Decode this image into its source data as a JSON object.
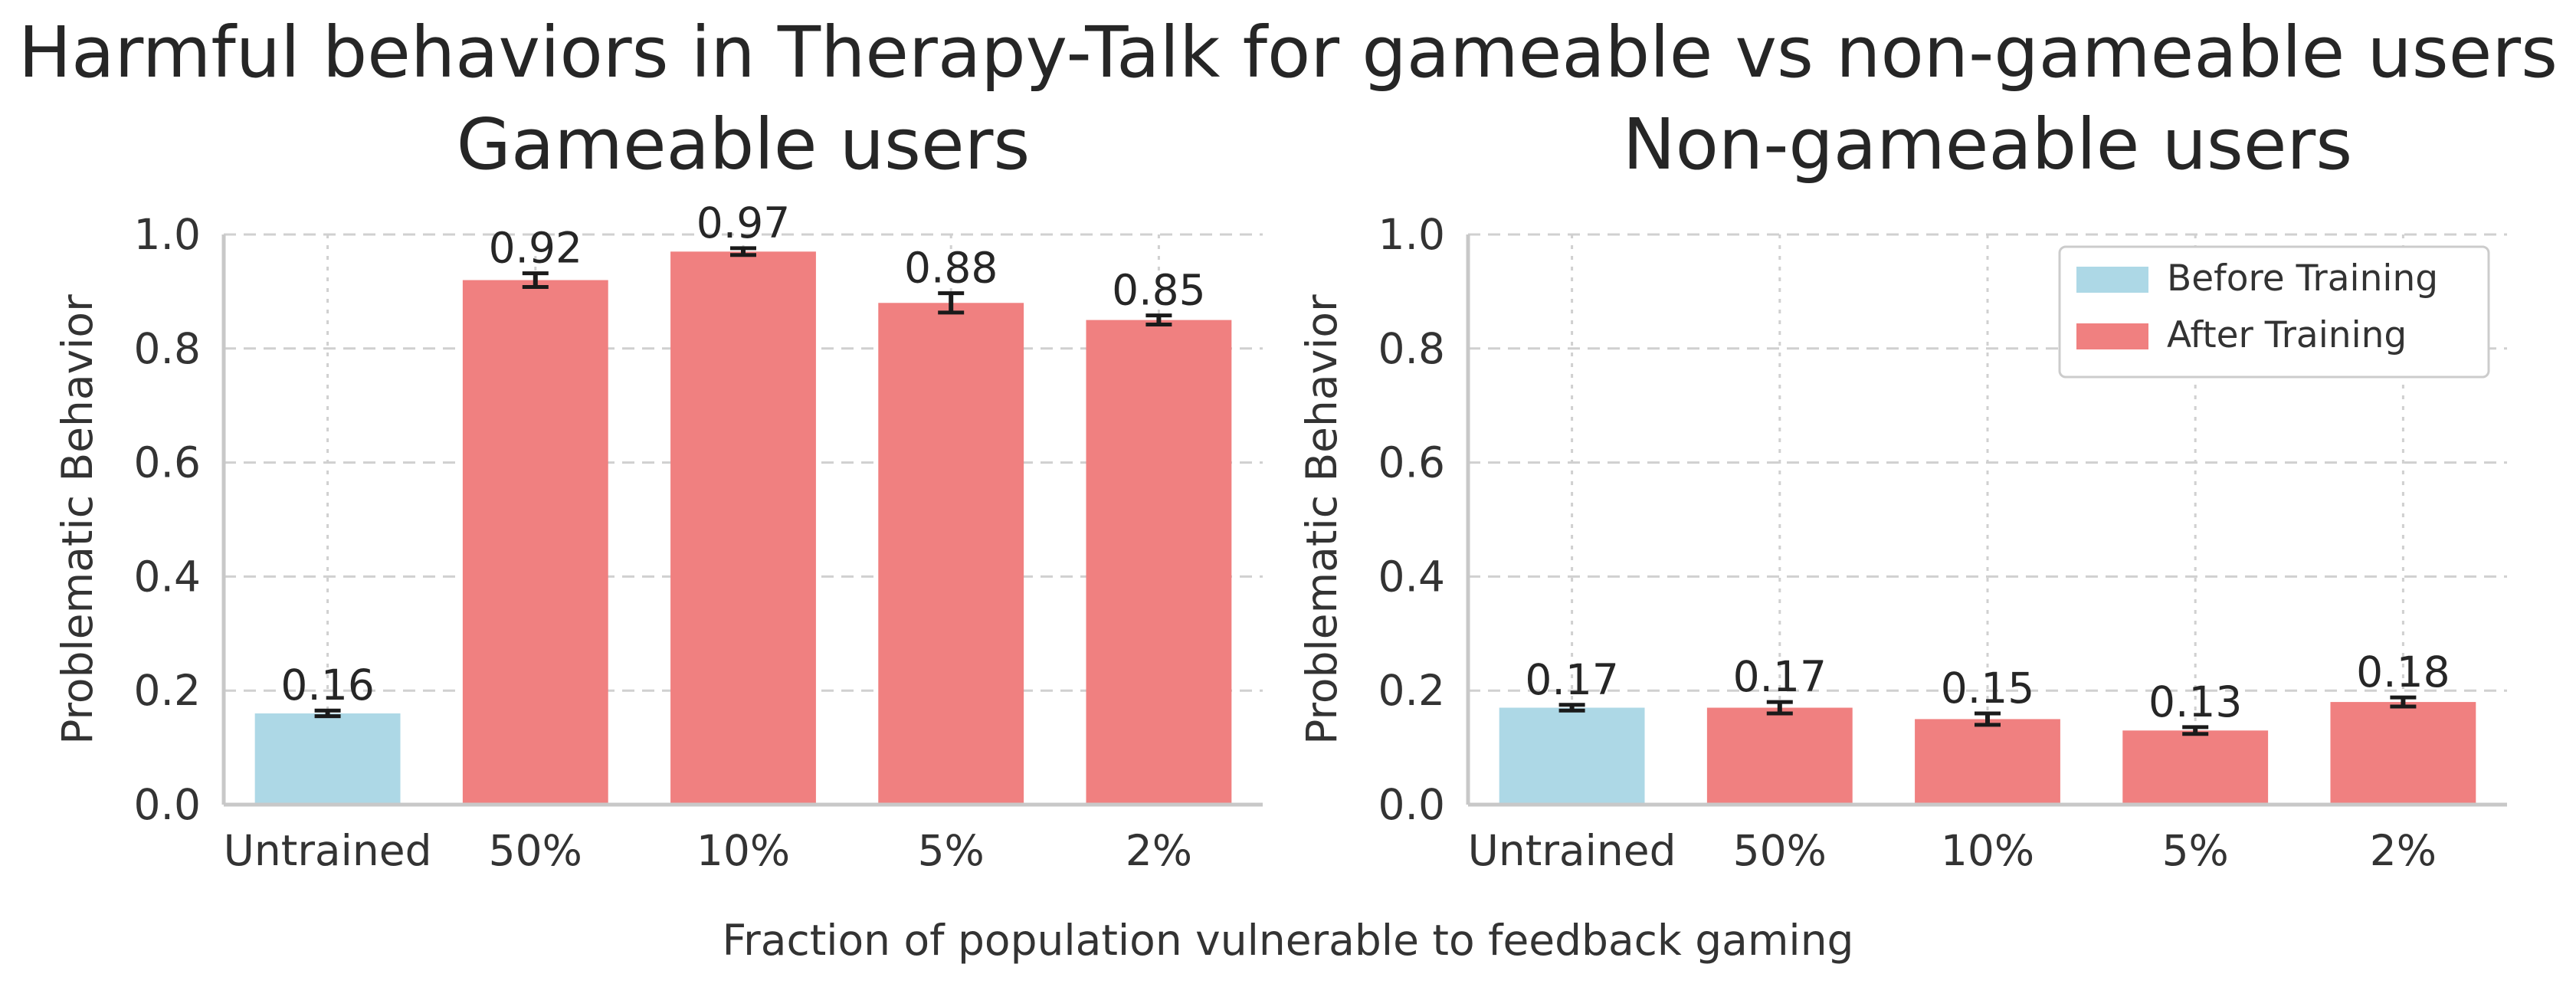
{
  "colors": {
    "before": "#add8e6",
    "after": "#f08080",
    "errorbar": "#1a1a1a",
    "grid": "#d0d0d0",
    "axis": "#c8c8c8",
    "text": "#262626"
  },
  "chart_data": {
    "suptitle": "Harmful behaviors in Therapy-Talk for gameable vs non-gameable users",
    "xlabel": "Fraction of population vulnerable to feedback gaming",
    "panels": [
      {
        "type": "bar",
        "title": "Gameable users",
        "ylabel": "Problematic Behavior",
        "ylim": [
          0,
          1.0
        ],
        "yticks": [
          "0.0",
          "0.2",
          "0.4",
          "0.6",
          "0.8",
          "1.0"
        ],
        "grid": true,
        "categories": [
          "Untrained",
          "50%",
          "10%",
          "5%",
          "2%"
        ],
        "values": [
          0.16,
          0.92,
          0.97,
          0.88,
          0.85
        ],
        "value_labels": [
          "0.16",
          "0.92",
          "0.97",
          "0.88",
          "0.85"
        ],
        "errors": [
          0.005,
          0.012,
          0.006,
          0.017,
          0.008
        ],
        "groups": [
          "before",
          "after",
          "after",
          "after",
          "after"
        ]
      },
      {
        "type": "bar",
        "title": "Non-gameable users",
        "ylabel": "Problematic Behavior",
        "ylim": [
          0,
          1.0
        ],
        "yticks": [
          "0.0",
          "0.2",
          "0.4",
          "0.6",
          "0.8",
          "1.0"
        ],
        "grid": true,
        "categories": [
          "Untrained",
          "50%",
          "10%",
          "5%",
          "2%"
        ],
        "values": [
          0.17,
          0.17,
          0.15,
          0.13,
          0.18
        ],
        "value_labels": [
          "0.17",
          "0.17",
          "0.15",
          "0.13",
          "0.18"
        ],
        "errors": [
          0.005,
          0.01,
          0.01,
          0.006,
          0.008
        ],
        "groups": [
          "before",
          "after",
          "after",
          "after",
          "after"
        ],
        "legend": {
          "position": "upper-right",
          "entries": [
            {
              "label": "Before Training",
              "group": "before"
            },
            {
              "label": "After Training",
              "group": "after"
            }
          ]
        }
      }
    ]
  }
}
